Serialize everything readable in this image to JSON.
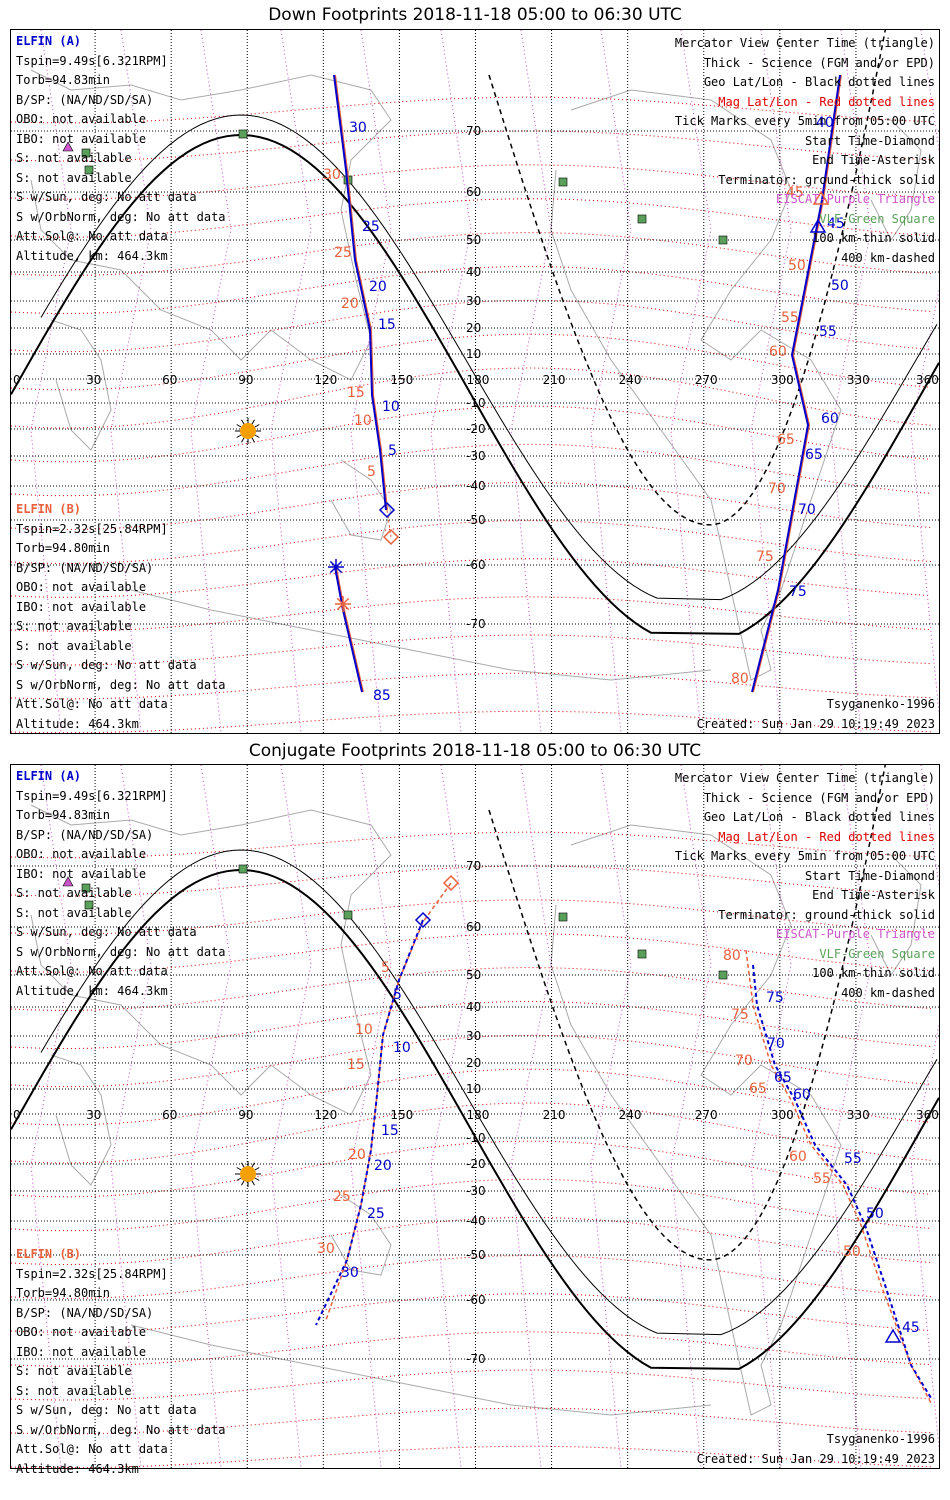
{
  "colors": {
    "elfin_a": "#0000cc",
    "elfin_b": "#e8603c",
    "geo_grid": "#000000",
    "mag_grid": "#dd0000",
    "coast": "#aaaaaa",
    "lon_mag": "#cc44cc",
    "vlf": "#5aa05a",
    "ebcm": "#cc55cc",
    "sun": "#f5a000"
  },
  "lon_ticks": [
    "0",
    "30",
    "60",
    "90",
    "120",
    "150",
    "180",
    "210",
    "240",
    "270",
    "300",
    "330",
    "360"
  ],
  "lat_ticks": [
    "70",
    "60",
    "50",
    "40",
    "30",
    "20",
    "10",
    "-10",
    "-20",
    "-30",
    "-40",
    "-50",
    "-60",
    "-70"
  ],
  "panels": [
    {
      "title": "Down Footprints 2018-11-18 05:00 to 06:30 UTC",
      "sc_a": {
        "name": "ELFIN (A)",
        "lines": [
          "Tspin=9.49s[6.321RPM]",
          "Torb=94.83min",
          "B/SP: (NA/ND/SD/SA)",
          "OBO: not available",
          "IBO: not available",
          "S: not available",
          "S: not available",
          "S w/Sun, deg: No att data",
          "S w/OrbNorm, deg: No att data",
          "Att.Sol@: No att data",
          "Altitude, km: 464.3km"
        ]
      },
      "sc_b": {
        "name": "ELFIN (B)",
        "lines": [
          "Tspin=2.32s[25.84RPM]",
          "Torb=94.80min",
          "B/SP: (NA/ND/SD/SA)",
          "OBO: not available",
          "IBO: not available",
          "S: not available",
          "S: not available",
          "S w/Sun, deg: No att data",
          "S w/OrbNorm, deg: No att data",
          "Att.Sol@: No att data",
          "Altitude: 464.3km"
        ]
      },
      "legend": [
        "Mercator View Center Time (triangle)",
        "Thick - Science (FGM and/or EPD)",
        "Geo Lat/Lon - Black dotted lines",
        "Mag Lat/Lon - Red dotted lines",
        "Tick Marks every 5min from 05:00 UTC",
        "Start Time-Diamond",
        "End Time-Asterisk",
        "Terminator: ground-thick solid",
        "EISCAT-Purple Triangle",
        "VLF-Green Square",
        "100 km-thin solid",
        "400 km-dashed"
      ],
      "model": "Tsyganenko-1996",
      "created": "Created: Sun Jan 29 10:19:49 2023",
      "track_a_labels": [
        "30",
        "25",
        "20",
        "15",
        "10",
        "5",
        "85",
        "40",
        "45",
        "50",
        "55",
        "60",
        "65",
        "70",
        "75"
      ],
      "track_b_labels": [
        "30",
        "25",
        "20",
        "15",
        "10",
        "5",
        "45",
        "50",
        "55",
        "60",
        "65",
        "70",
        "75",
        "80"
      ]
    },
    {
      "title": "Conjugate Footprints 2018-11-18 05:00 to 06:30 UTC",
      "sc_a": {
        "name": "ELFIN (A)",
        "lines": [
          "Tspin=9.49s[6.321RPM]",
          "Torb=94.83min",
          "B/SP: (NA/ND/SD/SA)",
          "OBO: not available",
          "IBO: not available",
          "S: not available",
          "S: not available",
          "S w/Sun, deg: No att data",
          "S w/OrbNorm, deg: No att data",
          "Att.Sol@: No att data",
          "Altitude, km: 464.3km"
        ]
      },
      "sc_b": {
        "name": "ELFIN (B)",
        "lines": [
          "Tspin=2.32s[25.84RPM]",
          "Torb=94.80min",
          "B/SP: (NA/ND/SD/SA)",
          "OBO: not available",
          "IBO: not available",
          "S: not available",
          "S: not available",
          "S w/Sun, deg: No att data",
          "S w/OrbNorm, deg: No att data",
          "Att.Sol@: No att data",
          "Altitude: 464.3km"
        ]
      },
      "legend": [
        "Mercator View Center Time (triangle)",
        "Thick - Science (FGM and/or EPD)",
        "Geo Lat/Lon - Black dotted lines",
        "Mag Lat/Lon - Red dotted lines",
        "Tick Marks every 5min from 05:00 UTC",
        "Start Time-Diamond",
        "End Time-Asterisk",
        "Terminator: ground-thick solid",
        "EISCAT-Purple Triangle",
        "VLF-Green Square",
        "100 km-thin solid",
        "400 km-dashed"
      ],
      "model": "Tsyganenko-1996",
      "created": "Created: Sun Jan 29 10:19:49 2023",
      "track_a_labels": [
        "5",
        "10",
        "15",
        "20",
        "25",
        "30",
        "45",
        "50",
        "55",
        "60",
        "65",
        "70",
        "75"
      ],
      "track_b_labels": [
        "5",
        "10",
        "15",
        "20",
        "25",
        "30",
        "50",
        "55",
        "60",
        "65",
        "70",
        "75",
        "80"
      ]
    }
  ]
}
